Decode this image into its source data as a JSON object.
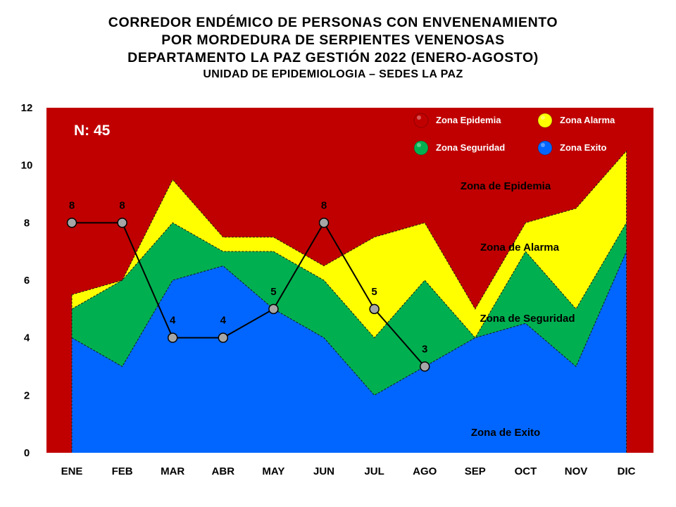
{
  "title_lines": [
    "CORREDOR ENDÉMICO DE PERSONAS CON ENVENENAMIENTO",
    "POR MORDEDURA DE SERPIENTES VENENOSAS",
    "DEPARTAMENTO LA PAZ GESTIÓN 2022 (ENERO-AGOSTO)"
  ],
  "subtitle": "UNIDAD DE EPIDEMIOLOGIA – SEDES LA PAZ",
  "n_label": "N: 45",
  "colors": {
    "epidemia": "#c00000",
    "alarma": "#ffff00",
    "seguridad": "#00b050",
    "exito": "#0066ff",
    "line": "#000000",
    "marker": "#a6a6a6"
  },
  "legend": [
    {
      "label": "Zona Epidemia",
      "color": "#c00000"
    },
    {
      "label": "Zona Alarma",
      "color": "#ffff00"
    },
    {
      "label": "Zona Seguridad",
      "color": "#00b050"
    },
    {
      "label": "Zona Exito",
      "color": "#0066ff"
    }
  ],
  "zone_labels": {
    "epidemia": "Zona de  Epidemia",
    "alarma": "Zona de Alarma",
    "seguridad": "Zona de Seguridad",
    "exito": "Zona de Exito"
  },
  "chart_data": {
    "type": "area",
    "categories": [
      "ENE",
      "FEB",
      "MAR",
      "ABR",
      "MAY",
      "JUN",
      "JUL",
      "AGO",
      "SEP",
      "OCT",
      "NOV",
      "DIC"
    ],
    "ylim": [
      0,
      12
    ],
    "yticks": [
      0,
      2,
      4,
      6,
      8,
      10,
      12
    ],
    "grid": false,
    "legend_position": "top-right",
    "series": [
      {
        "name": "Zona Exito",
        "values": [
          4,
          3,
          6,
          6.5,
          5,
          4,
          2,
          3,
          4,
          4.5,
          3,
          7
        ]
      },
      {
        "name": "Zona Seguridad",
        "values": [
          5,
          6,
          8,
          7,
          7,
          6,
          4,
          6,
          4,
          7,
          5,
          8
        ]
      },
      {
        "name": "Zona Alarma",
        "values": [
          5.5,
          6,
          9.5,
          7.5,
          7.5,
          6.5,
          7.5,
          8,
          5,
          8,
          8.5,
          10.5
        ]
      },
      {
        "name": "Zona Epidemia",
        "values": [
          12,
          12,
          12,
          12,
          12,
          12,
          12,
          12,
          12,
          12,
          12,
          12
        ]
      }
    ],
    "observed": {
      "categories": [
        "ENE",
        "FEB",
        "MAR",
        "ABR",
        "MAY",
        "JUN",
        "JUL",
        "AGO"
      ],
      "values": [
        8,
        8,
        4,
        4,
        5,
        8,
        5,
        3
      ]
    }
  }
}
